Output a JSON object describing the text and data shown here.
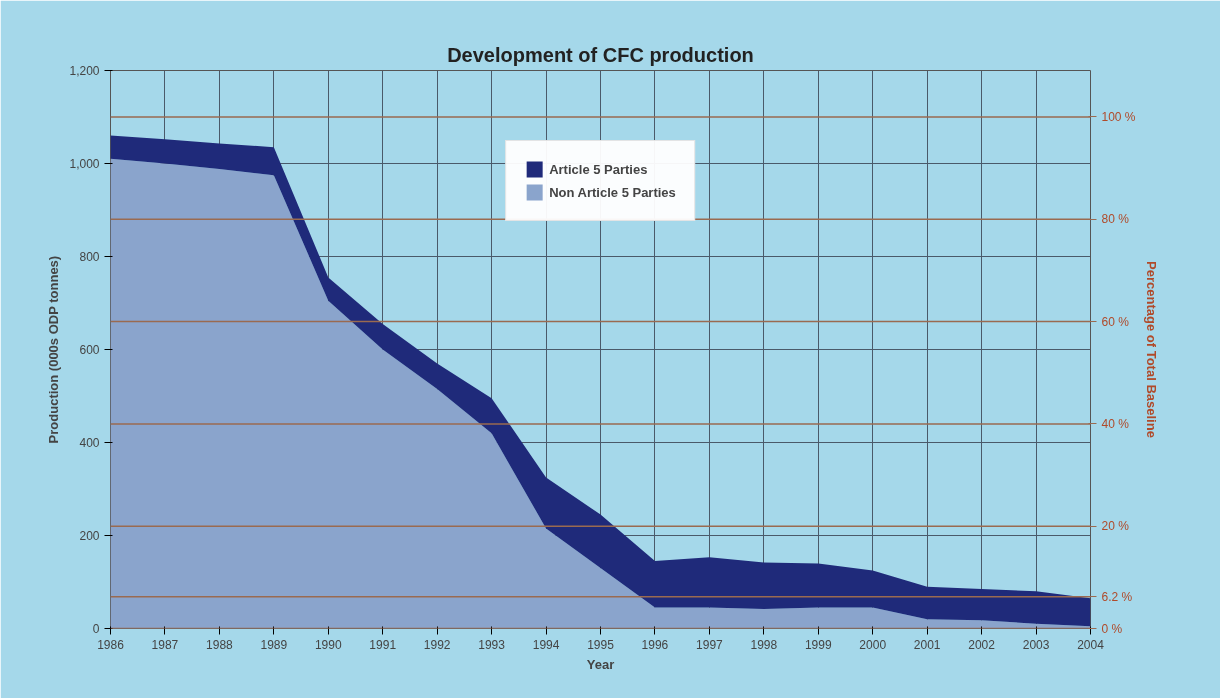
{
  "chart_data": {
    "type": "area",
    "title": "Development of CFC production",
    "xlabel": "Year",
    "ylabel": "Production (000s ODP tonnes)",
    "y2label": "Percentage of Total Baseline",
    "stacked": true,
    "x": [
      1986,
      1987,
      1988,
      1989,
      1990,
      1991,
      1992,
      1993,
      1994,
      1995,
      1996,
      1997,
      1998,
      1999,
      2000,
      2001,
      2002,
      2003,
      2004
    ],
    "series": [
      {
        "name": "Non Article 5 Parties",
        "color": "#8aa4cc",
        "values": [
          1010,
          1000,
          988,
          975,
          705,
          600,
          515,
          420,
          215,
          130,
          45,
          45,
          42,
          45,
          45,
          20,
          18,
          10,
          5
        ]
      },
      {
        "name": "Article 5 Parties",
        "color": "#1f2a7a",
        "values": [
          50,
          52,
          55,
          60,
          50,
          55,
          55,
          75,
          110,
          115,
          100,
          108,
          100,
          95,
          80,
          70,
          67,
          70,
          60
        ]
      }
    ],
    "xlim": [
      1986,
      2004
    ],
    "xticks": [
      1986,
      1987,
      1988,
      1989,
      1990,
      1991,
      1992,
      1993,
      1994,
      1995,
      1996,
      1997,
      1998,
      1999,
      2000,
      2001,
      2002,
      2003,
      2004
    ],
    "ylim": [
      0,
      1200
    ],
    "yticks": [
      0,
      200,
      400,
      600,
      800,
      {
        "value": 1000,
        "label": "1,000"
      },
      {
        "value": 1200,
        "label": "1,200"
      }
    ],
    "y2lim": [
      0,
      109.09
    ],
    "y2ticks": [
      {
        "value": 0,
        "label": "0 %"
      },
      {
        "value": 6.2,
        "label": "6.2 %"
      },
      {
        "value": 20,
        "label": "20 %"
      },
      {
        "value": 40,
        "label": "40 %"
      },
      {
        "value": 60,
        "label": "60 %"
      },
      {
        "value": 80,
        "label": "80 %"
      },
      {
        "value": 100,
        "label": "100 %"
      }
    ],
    "grid": true,
    "legend": "top"
  }
}
